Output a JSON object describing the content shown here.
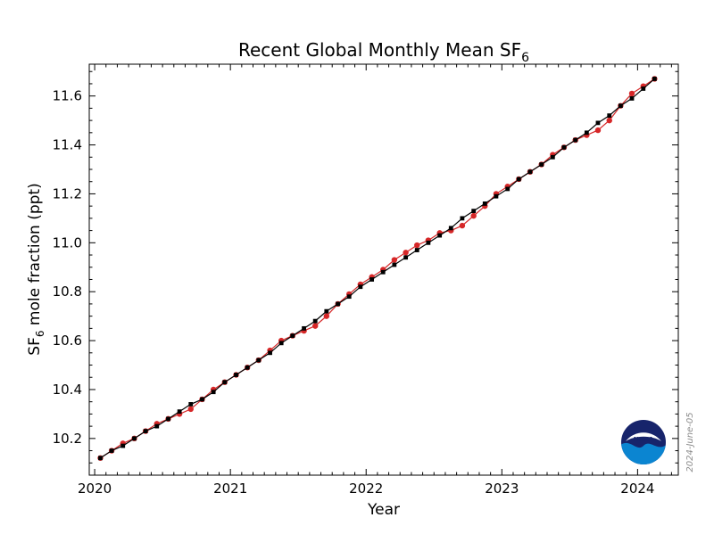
{
  "chart_data": {
    "type": "line",
    "title": "Recent Global Monthly Mean SF",
    "title_subscript": "6",
    "xlabel": "Year",
    "ylabel_prefix": "SF",
    "ylabel_subscript": "6",
    "ylabel_suffix": " mole fraction (ppt)",
    "xlim": [
      2019.96,
      2024.3
    ],
    "ylim": [
      10.05,
      11.73
    ],
    "x_ticks": [
      2020,
      2021,
      2022,
      2023,
      2024
    ],
    "y_ticks": [
      10.2,
      10.4,
      10.6,
      10.8,
      11.0,
      11.2,
      11.4,
      11.6
    ],
    "y_tick_labels": [
      "10.2",
      "10.4",
      "10.6",
      "10.8",
      "11.0",
      "11.2",
      "11.4",
      "11.6"
    ],
    "grid": false,
    "series": [
      {
        "color": "#d62728",
        "marker": "circle",
        "x": [
          2020.042,
          2020.125,
          2020.208,
          2020.292,
          2020.375,
          2020.458,
          2020.542,
          2020.625,
          2020.708,
          2020.792,
          2020.875,
          2020.958,
          2021.042,
          2021.125,
          2021.208,
          2021.292,
          2021.375,
          2021.458,
          2021.542,
          2021.625,
          2021.708,
          2021.792,
          2021.875,
          2021.958,
          2022.042,
          2022.125,
          2022.208,
          2022.292,
          2022.375,
          2022.458,
          2022.542,
          2022.625,
          2022.708,
          2022.792,
          2022.875,
          2022.958,
          2023.042,
          2023.125,
          2023.208,
          2023.292,
          2023.375,
          2023.458,
          2023.542,
          2023.625,
          2023.708,
          2023.792,
          2023.875,
          2023.958,
          2024.042,
          2024.125
        ],
        "values": [
          10.12,
          10.15,
          10.18,
          10.2,
          10.23,
          10.26,
          10.28,
          10.3,
          10.32,
          10.36,
          10.4,
          10.43,
          10.46,
          10.49,
          10.52,
          10.56,
          10.6,
          10.62,
          10.64,
          10.66,
          10.7,
          10.75,
          10.79,
          10.83,
          10.86,
          10.89,
          10.93,
          10.96,
          10.99,
          11.01,
          11.04,
          11.05,
          11.07,
          11.11,
          11.15,
          11.2,
          11.23,
          11.26,
          11.29,
          11.32,
          11.36,
          11.39,
          11.42,
          11.44,
          11.46,
          11.5,
          11.56,
          11.61,
          11.64,
          11.67
        ]
      },
      {
        "color": "#000000",
        "marker": "square",
        "x": [
          2020.042,
          2020.125,
          2020.208,
          2020.292,
          2020.375,
          2020.458,
          2020.542,
          2020.625,
          2020.708,
          2020.792,
          2020.875,
          2020.958,
          2021.042,
          2021.125,
          2021.208,
          2021.292,
          2021.375,
          2021.458,
          2021.542,
          2021.625,
          2021.708,
          2021.792,
          2021.875,
          2021.958,
          2022.042,
          2022.125,
          2022.208,
          2022.292,
          2022.375,
          2022.458,
          2022.542,
          2022.625,
          2022.708,
          2022.792,
          2022.875,
          2022.958,
          2023.042,
          2023.125,
          2023.208,
          2023.292,
          2023.375,
          2023.458,
          2023.542,
          2023.625,
          2023.708,
          2023.792,
          2023.875,
          2023.958,
          2024.042,
          2024.125
        ],
        "values": [
          10.12,
          10.15,
          10.17,
          10.2,
          10.23,
          10.25,
          10.28,
          10.31,
          10.34,
          10.36,
          10.39,
          10.43,
          10.46,
          10.49,
          10.52,
          10.55,
          10.59,
          10.62,
          10.65,
          10.68,
          10.72,
          10.75,
          10.78,
          10.82,
          10.85,
          10.88,
          10.91,
          10.94,
          10.97,
          11.0,
          11.03,
          11.06,
          11.1,
          11.13,
          11.16,
          11.19,
          11.22,
          11.26,
          11.29,
          11.32,
          11.35,
          11.39,
          11.42,
          11.45,
          11.49,
          11.52,
          11.56,
          11.59,
          11.63,
          11.67
        ]
      }
    ]
  },
  "stamp": {
    "date_text": "2024-June-05"
  },
  "logo": {
    "text": "NOAA",
    "colors": {
      "top": "#17246b",
      "bottom": "#0b85d1",
      "bird": "#ffffff"
    }
  }
}
